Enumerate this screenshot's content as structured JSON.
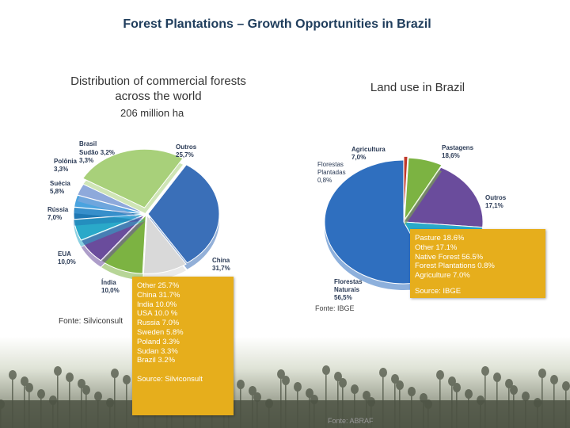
{
  "title": "Forest Plantations – Growth Opportunities in Brazil",
  "left": {
    "heading": "Distribution of commercial forests across the world",
    "heading_line1": "Distribution of commercial forests",
    "heading_line2": "across the world",
    "total": "206 million ha",
    "fonte": "Fonte: Silviconsult"
  },
  "right": {
    "heading": "Land use in Brazil",
    "fonte_pie": "Fonte: IBGE"
  },
  "chart_data": [
    {
      "type": "pie",
      "title": "Distribution of commercial forests across the world",
      "subtitle": "206 million ha",
      "labels": [
        "Outros",
        "China",
        "Índia",
        "EUA",
        "Rússia",
        "Suécia",
        "Polônia",
        "Sudão",
        "Brasil"
      ],
      "display_values": [
        "25,7%",
        "31,7%",
        "10,0%",
        "10,0%",
        "7,0%",
        "5,8%",
        "3,3%",
        "3,3%",
        "3,2%"
      ],
      "values": [
        25.7,
        31.7,
        10.0,
        10.0,
        7.0,
        5.8,
        3.3,
        3.3,
        3.2
      ],
      "colors": [
        "#a8d07a",
        "#3a6fb8",
        "#d9d9d9",
        "#7cb342",
        "#6a4c9c",
        "#2aa9c9",
        "#1f78b4",
        "#4aa3df",
        "#8ea9db"
      ],
      "source": "Source: Silviconsult"
    },
    {
      "type": "pie",
      "title": "Land use in Brazil",
      "labels": [
        "Pastagens",
        "Outros",
        "Florestas Naturais",
        "Florestas Plantadas",
        "Agricultura"
      ],
      "display_values": [
        "18,6%",
        "17,1%",
        "56,5%",
        "0,8%",
        "7,0%"
      ],
      "values": [
        18.6,
        17.1,
        56.5,
        0.8,
        7.0
      ],
      "colors": [
        "#6a4c9c",
        "#2aa9c9",
        "#2f6fbf",
        "#c0392b",
        "#7cb342"
      ],
      "source": "Source: IBGE"
    }
  ],
  "pie1_labels": {
    "brasil": {
      "name": "Brasil",
      "value": "3,2%"
    },
    "sudao": {
      "name": "Sudão",
      "value": "3,3%"
    },
    "polonia": {
      "name": "Polônia",
      "value": "3,3%"
    },
    "suecia": {
      "name": "Suécia",
      "value": "5,8%"
    },
    "russia": {
      "name": "Rússia",
      "value": "7,0%"
    },
    "eua": {
      "name": "EUA",
      "value": "10,0%"
    },
    "india": {
      "name": "Índia",
      "value": "10,0%"
    },
    "outros": {
      "name": "Outros",
      "value": "25,7%"
    },
    "china": {
      "name": "China",
      "value": "31,7%"
    }
  },
  "pie2_labels": {
    "agricultura": {
      "name": "Agricultura",
      "value": "7,0%"
    },
    "pastagens": {
      "name": "Pastagens",
      "value": "18,6%"
    },
    "plantadas": {
      "name1": "Florestas",
      "name2": "Plantadas",
      "value": "0,8%"
    },
    "outros": {
      "name": "Outros",
      "value": "17,1%"
    },
    "naturais": {
      "name1": "Florestas",
      "name2": "Naturais",
      "value": "56,5%"
    }
  },
  "box_left": {
    "lines": [
      "Other 25.7%",
      "China 31.7%",
      "India 10.0%",
      "USA 10.0 %",
      "Russia 7.0%",
      "Sweden 5.8%",
      "Poland 3.3%",
      "Sudan 3.3%",
      "Brazil 3.2%"
    ],
    "source": "Source: Silviconsult"
  },
  "box_right": {
    "lines": [
      "Pasture 18.6%",
      "Other 17.1%",
      "Native Forest 56.5%",
      "Forest Plantations 0.8%",
      "Agriculture 7.0%"
    ],
    "source": "Source: IBGE"
  },
  "bottom_fonte": "Fonte: ABRAF"
}
